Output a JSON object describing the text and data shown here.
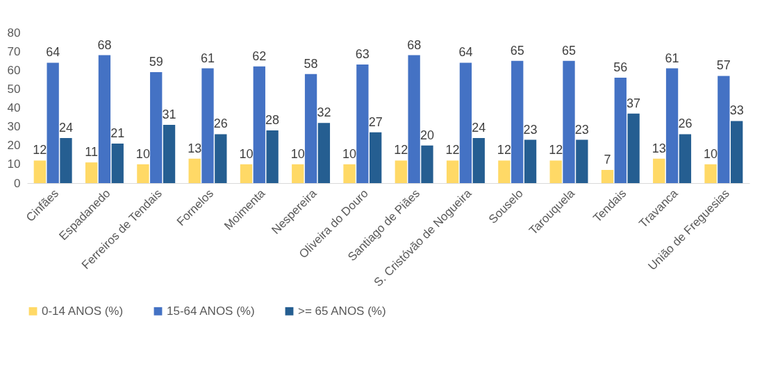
{
  "chart_data": {
    "type": "bar",
    "categories": [
      "Cinfães",
      "Espadanedo",
      "Ferreiros de Tendais",
      "Fornelos",
      "Moimenta",
      "Nespereira",
      "Oliveira do Douro",
      "Santiago de Piães",
      "S. Cristóvão de Nogueira",
      "Souselo",
      "Tarouquela",
      "Tendais",
      "Travanca",
      "União de Freguesias"
    ],
    "series": [
      {
        "name": "0-14 ANOS (%)",
        "color": "#ffd966",
        "values": [
          12,
          11,
          10,
          13,
          10,
          10,
          10,
          12,
          12,
          12,
          12,
          7,
          13,
          10
        ]
      },
      {
        "name": "15-64 ANOS (%)",
        "color": "#4472c4",
        "values": [
          64,
          68,
          59,
          61,
          62,
          58,
          63,
          68,
          64,
          65,
          65,
          56,
          61,
          57
        ]
      },
      {
        "name": ">= 65 ANOS (%)",
        "color": "#255e91",
        "values": [
          24,
          21,
          31,
          26,
          28,
          32,
          27,
          20,
          24,
          23,
          23,
          37,
          26,
          33
        ]
      }
    ],
    "ylim": [
      0,
      80
    ],
    "yticks": [
      0,
      10,
      20,
      30,
      40,
      50,
      60,
      70,
      80
    ],
    "grid": false,
    "legend": "bottom",
    "data_labels": true
  }
}
